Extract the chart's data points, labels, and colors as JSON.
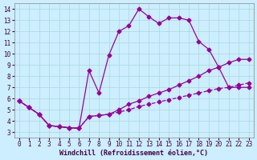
{
  "xlabel": "Windchill (Refroidissement éolien,°C)",
  "background_color": "#cceeff",
  "line_color": "#990099",
  "xlim": [
    -0.5,
    23.5
  ],
  "ylim": [
    2.5,
    14.5
  ],
  "xticks": [
    0,
    1,
    2,
    3,
    4,
    5,
    6,
    7,
    8,
    9,
    10,
    11,
    12,
    13,
    14,
    15,
    16,
    17,
    18,
    19,
    20,
    21,
    22,
    23
  ],
  "yticks": [
    3,
    4,
    5,
    6,
    7,
    8,
    9,
    10,
    11,
    12,
    13,
    14
  ],
  "line1_x": [
    0,
    1,
    2,
    3,
    4,
    5,
    6,
    7,
    8,
    9,
    10,
    11,
    12,
    13,
    14,
    15,
    16,
    17,
    18,
    19,
    20,
    21,
    22,
    23
  ],
  "line1_y": [
    5.8,
    5.2,
    4.6,
    3.6,
    3.5,
    3.4,
    3.35,
    8.5,
    6.5,
    9.9,
    12.0,
    12.5,
    14.0,
    13.3,
    12.7,
    13.2,
    13.2,
    13.0,
    11.1,
    10.4,
    8.8,
    7.0,
    7.0,
    7.0
  ],
  "line2_x": [
    0,
    1,
    2,
    3,
    4,
    5,
    6,
    7,
    8,
    9,
    10,
    11,
    12,
    13,
    14,
    15,
    16,
    17,
    18,
    19,
    20,
    21,
    22,
    23
  ],
  "line2_y": [
    5.8,
    5.2,
    4.6,
    3.6,
    3.5,
    3.4,
    3.35,
    4.4,
    4.5,
    4.6,
    5.0,
    5.5,
    5.8,
    6.2,
    6.5,
    6.8,
    7.2,
    7.6,
    8.0,
    8.5,
    8.8,
    9.2,
    9.5,
    9.5
  ],
  "line3_x": [
    0,
    1,
    2,
    3,
    4,
    5,
    6,
    7,
    8,
    9,
    10,
    11,
    12,
    13,
    14,
    15,
    16,
    17,
    18,
    19,
    20,
    21,
    22,
    23
  ],
  "line3_y": [
    5.8,
    5.2,
    4.6,
    3.6,
    3.5,
    3.4,
    3.35,
    4.4,
    4.5,
    4.6,
    4.8,
    5.0,
    5.3,
    5.5,
    5.7,
    5.9,
    6.1,
    6.3,
    6.5,
    6.7,
    6.9,
    7.0,
    7.2,
    7.4
  ],
  "line1_style": "-",
  "line2_style": "-",
  "line3_style": "--",
  "marker": "D",
  "markersize": 2.5,
  "linewidth": 0.9,
  "tick_fontsize": 5.5,
  "xlabel_fontsize": 6.0,
  "grid_color": "#aad8d8"
}
